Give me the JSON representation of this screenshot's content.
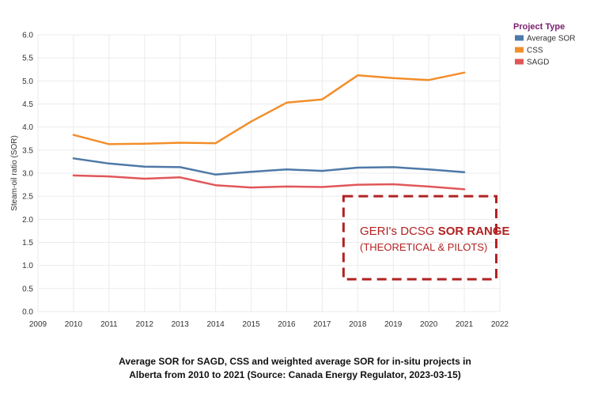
{
  "chart_data": {
    "type": "line",
    "x": [
      2010,
      2011,
      2012,
      2013,
      2014,
      2015,
      2016,
      2017,
      2018,
      2019,
      2020,
      2021
    ],
    "x_ticks": [
      "2009",
      "2010",
      "2011",
      "2012",
      "2013",
      "2014",
      "2015",
      "2016",
      "2017",
      "2018",
      "2019",
      "2020",
      "2021",
      "2022"
    ],
    "y_ticks": [
      "0.0",
      "0.5",
      "1.0",
      "1.5",
      "2.0",
      "2.5",
      "3.0",
      "3.5",
      "4.0",
      "4.5",
      "5.0",
      "5.5",
      "6.0"
    ],
    "ylabel": "Steam-oil ratio (SOR)",
    "xlim": [
      2009,
      2022
    ],
    "ylim": [
      0,
      6
    ],
    "grid": true,
    "legend": {
      "title": "Project Type",
      "placement": "top-right"
    },
    "series": [
      {
        "name": "Average SOR",
        "color": "#4e79a7",
        "values": [
          3.32,
          3.21,
          3.14,
          3.13,
          2.97,
          3.03,
          3.08,
          3.05,
          3.12,
          3.13,
          3.08,
          3.02
        ]
      },
      {
        "name": "CSS",
        "color": "#f28e2b",
        "values": [
          3.83,
          3.63,
          3.64,
          3.66,
          3.65,
          4.12,
          4.53,
          4.6,
          5.12,
          5.06,
          5.02,
          5.18
        ]
      },
      {
        "name": "SAGD",
        "color": "#e15759",
        "values": [
          2.95,
          2.93,
          2.88,
          2.91,
          2.74,
          2.69,
          2.71,
          2.7,
          2.75,
          2.76,
          2.71,
          2.65
        ]
      }
    ],
    "annotation": {
      "line1_prefix": "GERI's DCSG ",
      "line1_bold": "SOR RANGE",
      "line2": "(THEORETICAL & PILOTS)",
      "color": "#b22222",
      "x_range": [
        2017.6,
        2021.9
      ],
      "y_range": [
        0.7,
        2.5
      ]
    }
  },
  "caption": {
    "line1": "Average SOR for SAGD, CSS and weighted average SOR for in-situ projects in",
    "line2": "Alberta from 2010 to 2021 (Source: Canada Energy Regulator, 2023-03-15)"
  }
}
